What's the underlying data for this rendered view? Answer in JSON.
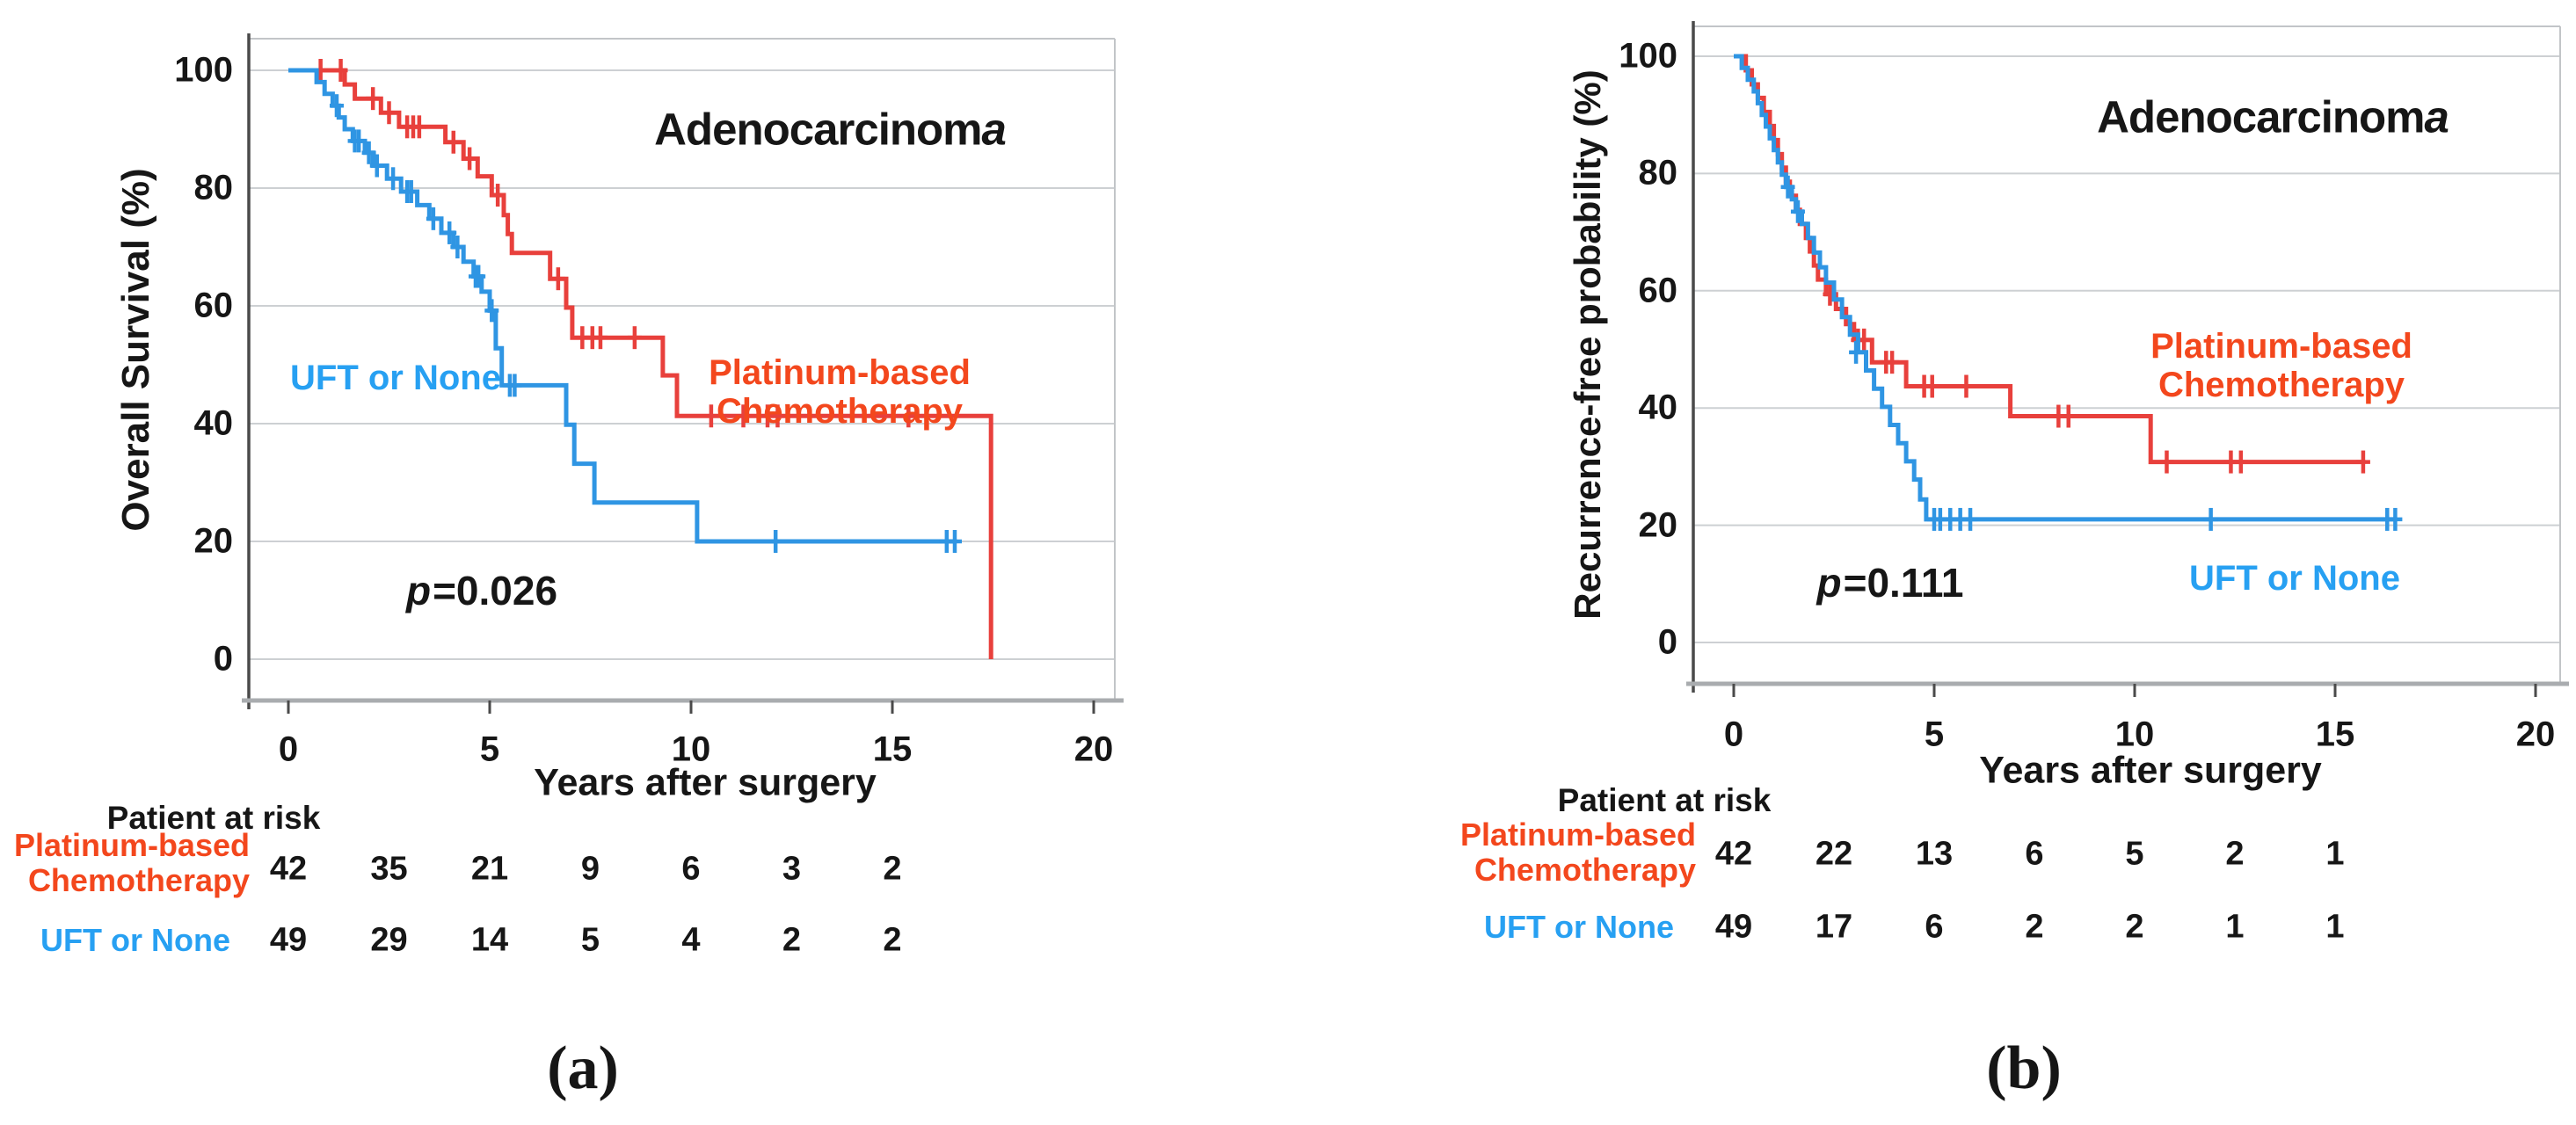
{
  "captions": {
    "a": "(a)",
    "b": "(b)"
  },
  "colors": {
    "red_curve": "#e8403c",
    "red_label": "#f3471d",
    "blue_curve": "#2f95e3",
    "blue_label": "#27a0f2",
    "grid": "#cdd0d3",
    "axis_dark": "#4a4a4a",
    "axis_light": "#a9acaf",
    "box_border": "#c2c5c8",
    "text": "#161616"
  },
  "chart_data": [
    {
      "type": "line",
      "subtype": "kaplan-meier-step",
      "title": "Adenocarcinoma",
      "title_main": "Adenocarcinom",
      "title_italic": "a",
      "ylabel": "Overall  Survival (%)",
      "xlabel": "Years after surgery",
      "xlim": [
        0,
        20
      ],
      "ylim": [
        0,
        100
      ],
      "x_ticks": [
        "0",
        "5",
        "10",
        "15",
        "20"
      ],
      "y_ticks": [
        "100",
        "80",
        "60",
        "40",
        "20",
        "0"
      ],
      "grid": true,
      "p_prefix": "p",
      "p_text": "=0.026",
      "series": [
        {
          "name": "Platinum-based Chemotherapy",
          "label_lines": [
            "Platinum-based",
            "Chemotherapy"
          ],
          "color": "#e8403c",
          "label_color": "#f3471d",
          "steps": [
            [
              0,
              100
            ],
            [
              1.4,
              97.6
            ],
            [
              1.65,
              95.2
            ],
            [
              2.3,
              92.8
            ],
            [
              2.75,
              90.4
            ],
            [
              3.9,
              87.8
            ],
            [
              4.35,
              85.0
            ],
            [
              4.7,
              82.0
            ],
            [
              5.05,
              78.8
            ],
            [
              5.35,
              75.4
            ],
            [
              5.45,
              72.2
            ],
            [
              5.55,
              69.0
            ],
            [
              6.5,
              64.6
            ],
            [
              6.9,
              59.7
            ],
            [
              7.05,
              54.6
            ],
            [
              9.3,
              48.2
            ],
            [
              9.65,
              41.3
            ],
            [
              17.45,
              0
            ]
          ],
          "censors": [
            [
              0.8,
              100
            ],
            [
              1.3,
              100
            ],
            [
              2.1,
              95.2
            ],
            [
              2.5,
              92.8
            ],
            [
              2.95,
              90.4
            ],
            [
              3.1,
              90.4
            ],
            [
              3.25,
              90.4
            ],
            [
              4.1,
              87.8
            ],
            [
              4.5,
              85.0
            ],
            [
              5.2,
              78.8
            ],
            [
              6.7,
              64.6
            ],
            [
              7.3,
              54.6
            ],
            [
              7.55,
              54.6
            ],
            [
              7.75,
              54.6
            ],
            [
              8.6,
              54.6
            ],
            [
              10.5,
              41.3
            ],
            [
              11.3,
              41.3
            ],
            [
              11.9,
              41.3
            ],
            [
              12.15,
              41.3
            ],
            [
              15.4,
              41.3
            ]
          ]
        },
        {
          "name": "UFT or None",
          "label_lines": [
            "UFT or None"
          ],
          "color": "#2f95e3",
          "label_color": "#27a0f2",
          "steps": [
            [
              0,
              100
            ],
            [
              0.7,
              98
            ],
            [
              0.9,
              96
            ],
            [
              1.1,
              94
            ],
            [
              1.25,
              92
            ],
            [
              1.4,
              90
            ],
            [
              1.6,
              88
            ],
            [
              1.9,
              86
            ],
            [
              2.1,
              83.8
            ],
            [
              2.45,
              81.6
            ],
            [
              2.8,
              79.4
            ],
            [
              3.2,
              77.1
            ],
            [
              3.5,
              74.8
            ],
            [
              3.8,
              72.4
            ],
            [
              4.1,
              70.0
            ],
            [
              4.35,
              67.5
            ],
            [
              4.6,
              65.0
            ],
            [
              4.8,
              62.4
            ],
            [
              5.0,
              59.2
            ],
            [
              5.15,
              52.8
            ],
            [
              5.3,
              46.5
            ],
            [
              6.9,
              39.8
            ],
            [
              7.1,
              33.2
            ],
            [
              7.6,
              26.6
            ],
            [
              10.15,
              20.0
            ],
            [
              16.6,
              20.0
            ]
          ],
          "censors": [
            [
              1.2,
              94
            ],
            [
              1.65,
              88
            ],
            [
              1.75,
              88
            ],
            [
              2.0,
              86
            ],
            [
              2.2,
              83.8
            ],
            [
              2.6,
              81.6
            ],
            [
              2.95,
              79.4
            ],
            [
              3.05,
              79.4
            ],
            [
              3.6,
              74.8
            ],
            [
              4.0,
              72.4
            ],
            [
              4.2,
              70.0
            ],
            [
              4.65,
              65.0
            ],
            [
              4.72,
              65.0
            ],
            [
              5.05,
              59.2
            ],
            [
              5.5,
              46.5
            ],
            [
              5.62,
              46.5
            ],
            [
              12.1,
              20.0
            ],
            [
              16.35,
              20.0
            ],
            [
              16.55,
              20.0
            ]
          ]
        }
      ],
      "risk_table": {
        "header": "Patient at risk",
        "times": [
          0,
          2.5,
          5,
          7.5,
          10,
          12.5,
          15
        ],
        "rows": [
          {
            "label_lines": [
              "Platinum-based",
              "Chemotherapy"
            ],
            "color": "#f3471d",
            "counts": [
              "42",
              "35",
              "21",
              "9",
              "6",
              "3",
              "2"
            ]
          },
          {
            "label_lines": [
              "UFT or None"
            ],
            "color": "#27a0f2",
            "counts": [
              "49",
              "29",
              "14",
              "5",
              "4",
              "2",
              "2"
            ]
          }
        ]
      }
    },
    {
      "type": "line",
      "subtype": "kaplan-meier-step",
      "title": "Adenocarcinoma",
      "title_main": "Adenocarcinom",
      "title_italic": "a",
      "ylabel": "Recurrence-free probability (%)",
      "xlabel": "Years after surgery",
      "xlim": [
        0,
        20
      ],
      "ylim": [
        0,
        100
      ],
      "x_ticks": [
        "0",
        "5",
        "10",
        "15",
        "20"
      ],
      "y_ticks": [
        "100",
        "80",
        "60",
        "40",
        "20",
        "0"
      ],
      "grid": true,
      "p_prefix": "p",
      "p_text": "=0.111",
      "series": [
        {
          "name": "Platinum-based Chemotherapy",
          "label_lines": [
            "Platinum-based",
            "Chemotherapy"
          ],
          "color": "#e8403c",
          "label_color": "#f3471d",
          "steps": [
            [
              0,
              100
            ],
            [
              0.3,
              97.6
            ],
            [
              0.45,
              95.2
            ],
            [
              0.6,
              92.9
            ],
            [
              0.75,
              90.5
            ],
            [
              0.9,
              88.1
            ],
            [
              1.0,
              85.7
            ],
            [
              1.1,
              83.3
            ],
            [
              1.2,
              81.0
            ],
            [
              1.3,
              78.6
            ],
            [
              1.4,
              76.2
            ],
            [
              1.55,
              73.8
            ],
            [
              1.65,
              71.4
            ],
            [
              1.8,
              69.0
            ],
            [
              1.9,
              66.7
            ],
            [
              2.0,
              64.3
            ],
            [
              2.1,
              61.9
            ],
            [
              2.3,
              59.4
            ],
            [
              2.55,
              56.9
            ],
            [
              2.8,
              54.3
            ],
            [
              3.0,
              51.6
            ],
            [
              3.45,
              47.8
            ],
            [
              4.3,
              43.7
            ],
            [
              6.9,
              38.6
            ],
            [
              10.4,
              30.8
            ],
            [
              15.75,
              30.8
            ]
          ],
          "censors": [
            [
              2.4,
              59.4
            ],
            [
              3.1,
              51.6
            ],
            [
              3.25,
              51.6
            ],
            [
              3.8,
              47.8
            ],
            [
              3.95,
              47.8
            ],
            [
              4.75,
              43.7
            ],
            [
              4.95,
              43.7
            ],
            [
              5.8,
              43.7
            ],
            [
              8.1,
              38.6
            ],
            [
              8.35,
              38.6
            ],
            [
              10.8,
              30.8
            ],
            [
              12.4,
              30.8
            ],
            [
              12.65,
              30.8
            ],
            [
              15.7,
              30.8
            ]
          ]
        },
        {
          "name": "UFT or None",
          "label_lines": [
            "UFT or None"
          ],
          "color": "#2f95e3",
          "label_color": "#27a0f2",
          "steps": [
            [
              0,
              100
            ],
            [
              0.2,
              98
            ],
            [
              0.35,
              96
            ],
            [
              0.5,
              94
            ],
            [
              0.6,
              92
            ],
            [
              0.7,
              90
            ],
            [
              0.8,
              88
            ],
            [
              0.9,
              86
            ],
            [
              1.0,
              84
            ],
            [
              1.1,
              81.9
            ],
            [
              1.2,
              79.8
            ],
            [
              1.3,
              77.7
            ],
            [
              1.45,
              75.6
            ],
            [
              1.55,
              73.5
            ],
            [
              1.7,
              71.4
            ],
            [
              1.85,
              69.0
            ],
            [
              2.0,
              66.5
            ],
            [
              2.15,
              64.0
            ],
            [
              2.3,
              61.4
            ],
            [
              2.5,
              58.5
            ],
            [
              2.7,
              55.5
            ],
            [
              2.9,
              52.5
            ],
            [
              3.1,
              49.5
            ],
            [
              3.3,
              46.4
            ],
            [
              3.5,
              43.3
            ],
            [
              3.7,
              40.2
            ],
            [
              3.9,
              37.1
            ],
            [
              4.1,
              34.0
            ],
            [
              4.3,
              30.9
            ],
            [
              4.5,
              27.8
            ],
            [
              4.65,
              24.4
            ],
            [
              4.8,
              21.0
            ],
            [
              16.55,
              21.0
            ]
          ],
          "censors": [
            [
              1.35,
              77.7
            ],
            [
              1.6,
              73.5
            ],
            [
              3.05,
              49.5
            ],
            [
              5.0,
              21.0
            ],
            [
              5.15,
              21.0
            ],
            [
              5.4,
              21.0
            ],
            [
              5.65,
              21.0
            ],
            [
              5.9,
              21.0
            ],
            [
              11.9,
              21.0
            ],
            [
              16.3,
              21.0
            ],
            [
              16.5,
              21.0
            ]
          ]
        }
      ],
      "risk_table": {
        "header": "Patient at risk",
        "times": [
          0,
          2.5,
          5,
          7.5,
          10,
          12.5,
          15
        ],
        "rows": [
          {
            "label_lines": [
              "Platinum-based",
              "Chemotherapy"
            ],
            "color": "#f3471d",
            "counts": [
              "42",
              "22",
              "13",
              "6",
              "5",
              "2",
              "1"
            ]
          },
          {
            "label_lines": [
              "UFT or None"
            ],
            "color": "#27a0f2",
            "counts": [
              "49",
              "17",
              "6",
              "2",
              "2",
              "1",
              "1"
            ]
          }
        ]
      }
    }
  ]
}
